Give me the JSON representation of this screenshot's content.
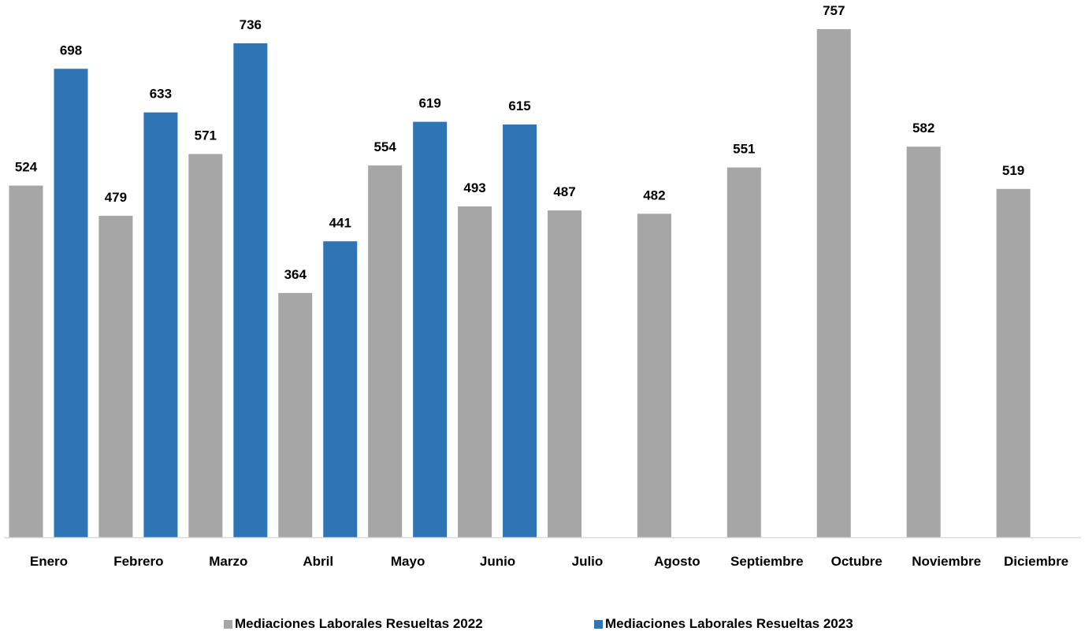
{
  "chart_data": {
    "type": "bar",
    "categories": [
      "Enero",
      "Febrero",
      "Marzo",
      "Abril",
      "Mayo",
      "Junio",
      "Julio",
      "Agosto",
      "Septiembre",
      "Octubre",
      "Noviembre",
      "Diciembre"
    ],
    "series": [
      {
        "name": "Mediaciones Laborales Resueltas 2022",
        "color": "#A6A6A6",
        "values": [
          524,
          479,
          571,
          364,
          554,
          493,
          487,
          482,
          551,
          757,
          582,
          519
        ]
      },
      {
        "name": "Mediaciones Laborales Resueltas 2023",
        "color": "#2E75B6",
        "values": [
          698,
          633,
          736,
          441,
          619,
          615,
          null,
          null,
          null,
          null,
          null,
          null
        ]
      }
    ],
    "title": "",
    "xlabel": "",
    "ylabel": "",
    "ylim": [
      0,
      800
    ],
    "grid": false,
    "legend_position": "bottom",
    "data_labels": true
  }
}
